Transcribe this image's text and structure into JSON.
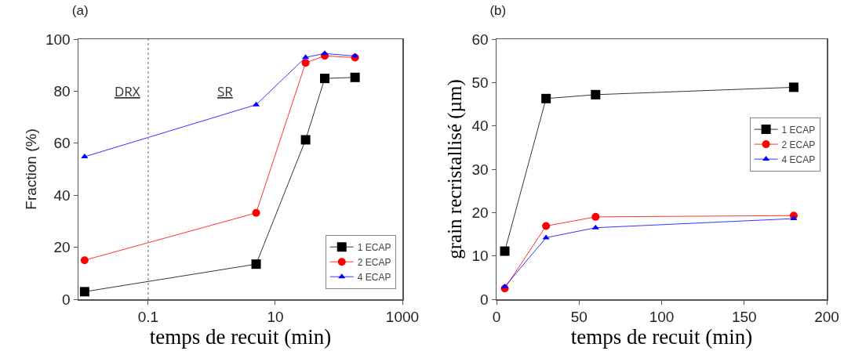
{
  "chart_data": [
    {
      "type": "line",
      "title": "(a)",
      "xlabel": "temps de recuit (min)",
      "ylabel": "Fraction (%)",
      "x": [
        0.01,
        5,
        30,
        60,
        180
      ],
      "series": [
        {
          "name": "1 ECAP",
          "color": "#000000",
          "marker": "square",
          "values": [
            2.9,
            13.5,
            61.3,
            84.9,
            85.3
          ]
        },
        {
          "name": "2 ECAP",
          "color": "#ff0000",
          "marker": "circle",
          "values": [
            15,
            33.2,
            90.9,
            93.6,
            92.9
          ]
        },
        {
          "name": "4 ECAP",
          "color": "#0000ff",
          "marker": "triangle",
          "values": [
            54.8,
            74.8,
            93,
            94.5,
            93.5
          ]
        }
      ],
      "log": "x",
      "xlim": [
        0.008,
        1000
      ],
      "xticks": [
        0.1,
        10,
        1000
      ],
      "ylim": [
        0,
        100
      ],
      "yticks": [
        0,
        20,
        40,
        60,
        80,
        100
      ],
      "ref_lines": [
        {
          "axis": "x",
          "value": 0.1,
          "color": "#999999",
          "line_style": "dotted"
        }
      ],
      "annotations": [
        "DRX",
        "SR"
      ],
      "grid": false,
      "legend": "bottom right"
    },
    {
      "type": "line",
      "title": "(b)",
      "xlabel": "temps de recuit (min)",
      "ylabel": "grain recristallisé (µm)",
      "x": [
        5,
        30,
        60,
        180
      ],
      "series": [
        {
          "name": "1 ECAP",
          "color": "#000000",
          "marker": "square",
          "values": [
            11.1,
            46.3,
            47.2,
            48.9
          ]
        },
        {
          "name": "2 ECAP",
          "color": "#ff0000",
          "marker": "circle",
          "values": [
            2.5,
            16.9,
            19,
            19.3
          ]
        },
        {
          "name": "4 ECAP",
          "color": "#0000ff",
          "marker": "triangle",
          "values": [
            2.9,
            14.2,
            16.5,
            18.6
          ]
        }
      ],
      "xlim": [
        0,
        200
      ],
      "xticks": [
        0,
        50,
        100,
        150,
        200
      ],
      "ylim": [
        0,
        60
      ],
      "yticks": [
        0,
        10,
        20,
        30,
        40,
        50,
        60
      ],
      "grid": false,
      "legend": "right"
    }
  ]
}
